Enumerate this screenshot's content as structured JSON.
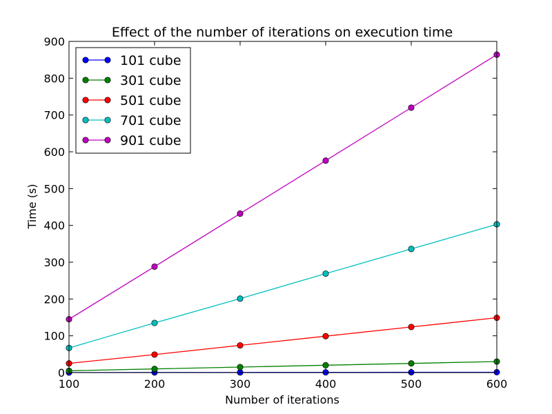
{
  "chart_data": {
    "type": "line",
    "title": "Effect of the number of iterations on execution time",
    "xlabel": "Number of iterations",
    "ylabel": "Time (s)",
    "xlim": [
      100,
      600
    ],
    "ylim": [
      0,
      900
    ],
    "xticks": [
      100,
      200,
      300,
      400,
      500,
      600
    ],
    "yticks": [
      0,
      100,
      200,
      300,
      400,
      500,
      600,
      700,
      800,
      900
    ],
    "grid": false,
    "legend_position": "top-left",
    "x": [
      100,
      200,
      300,
      400,
      500,
      600
    ],
    "series": [
      {
        "name": "101 cube",
        "color": "#0000ff",
        "values": [
          0.2,
          0.4,
          0.5,
          0.7,
          0.8,
          1.0
        ]
      },
      {
        "name": "301 cube",
        "color": "#008000",
        "values": [
          5,
          10,
          15,
          20,
          25,
          30
        ]
      },
      {
        "name": "501 cube",
        "color": "#ff0000",
        "values": [
          25,
          49,
          74,
          99,
          124,
          149
        ]
      },
      {
        "name": "701 cube",
        "color": "#00bfbf",
        "values": [
          67,
          135,
          201,
          269,
          336,
          403
        ]
      },
      {
        "name": "901 cube",
        "color": "#bf00bf",
        "values": [
          145,
          288,
          432,
          576,
          720,
          864
        ]
      }
    ]
  }
}
